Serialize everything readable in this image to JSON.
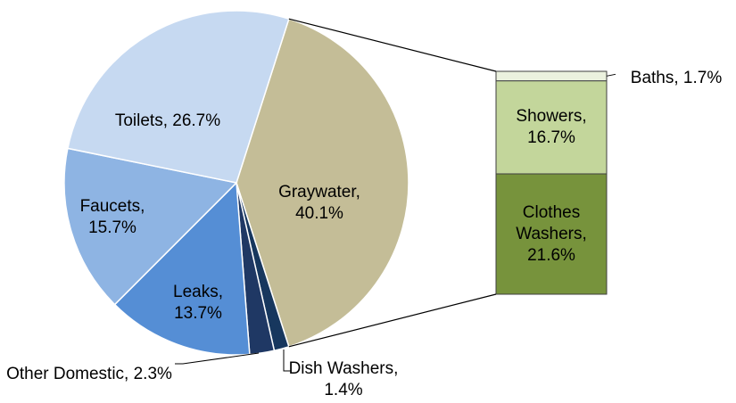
{
  "chart_data": {
    "type": "pie",
    "values": [
      40.1,
      1.4,
      2.3,
      13.7,
      15.7,
      26.7
    ],
    "value_labels": [
      "Graywater, 40.1%",
      "Dish Washers, 1.4%",
      "Other Domestic, 2.3%",
      "Leaks, 13.7%",
      "Faucets, 15.7%",
      "Toilets, 26.7%"
    ],
    "colors": [
      "#c4bd97",
      "#17375e",
      "#1f3864",
      "#558ed5",
      "#8eb4e3",
      "#c6d9f1"
    ],
    "breakout": {
      "values": [
        21.6,
        16.7,
        1.7
      ],
      "value_labels": [
        "Clothes Washers, 21.6%",
        "Showers, 16.7%",
        "Baths, 1.7%"
      ],
      "colors": [
        "#77933c",
        "#c3d69b",
        "#ebf1de"
      ]
    }
  }
}
